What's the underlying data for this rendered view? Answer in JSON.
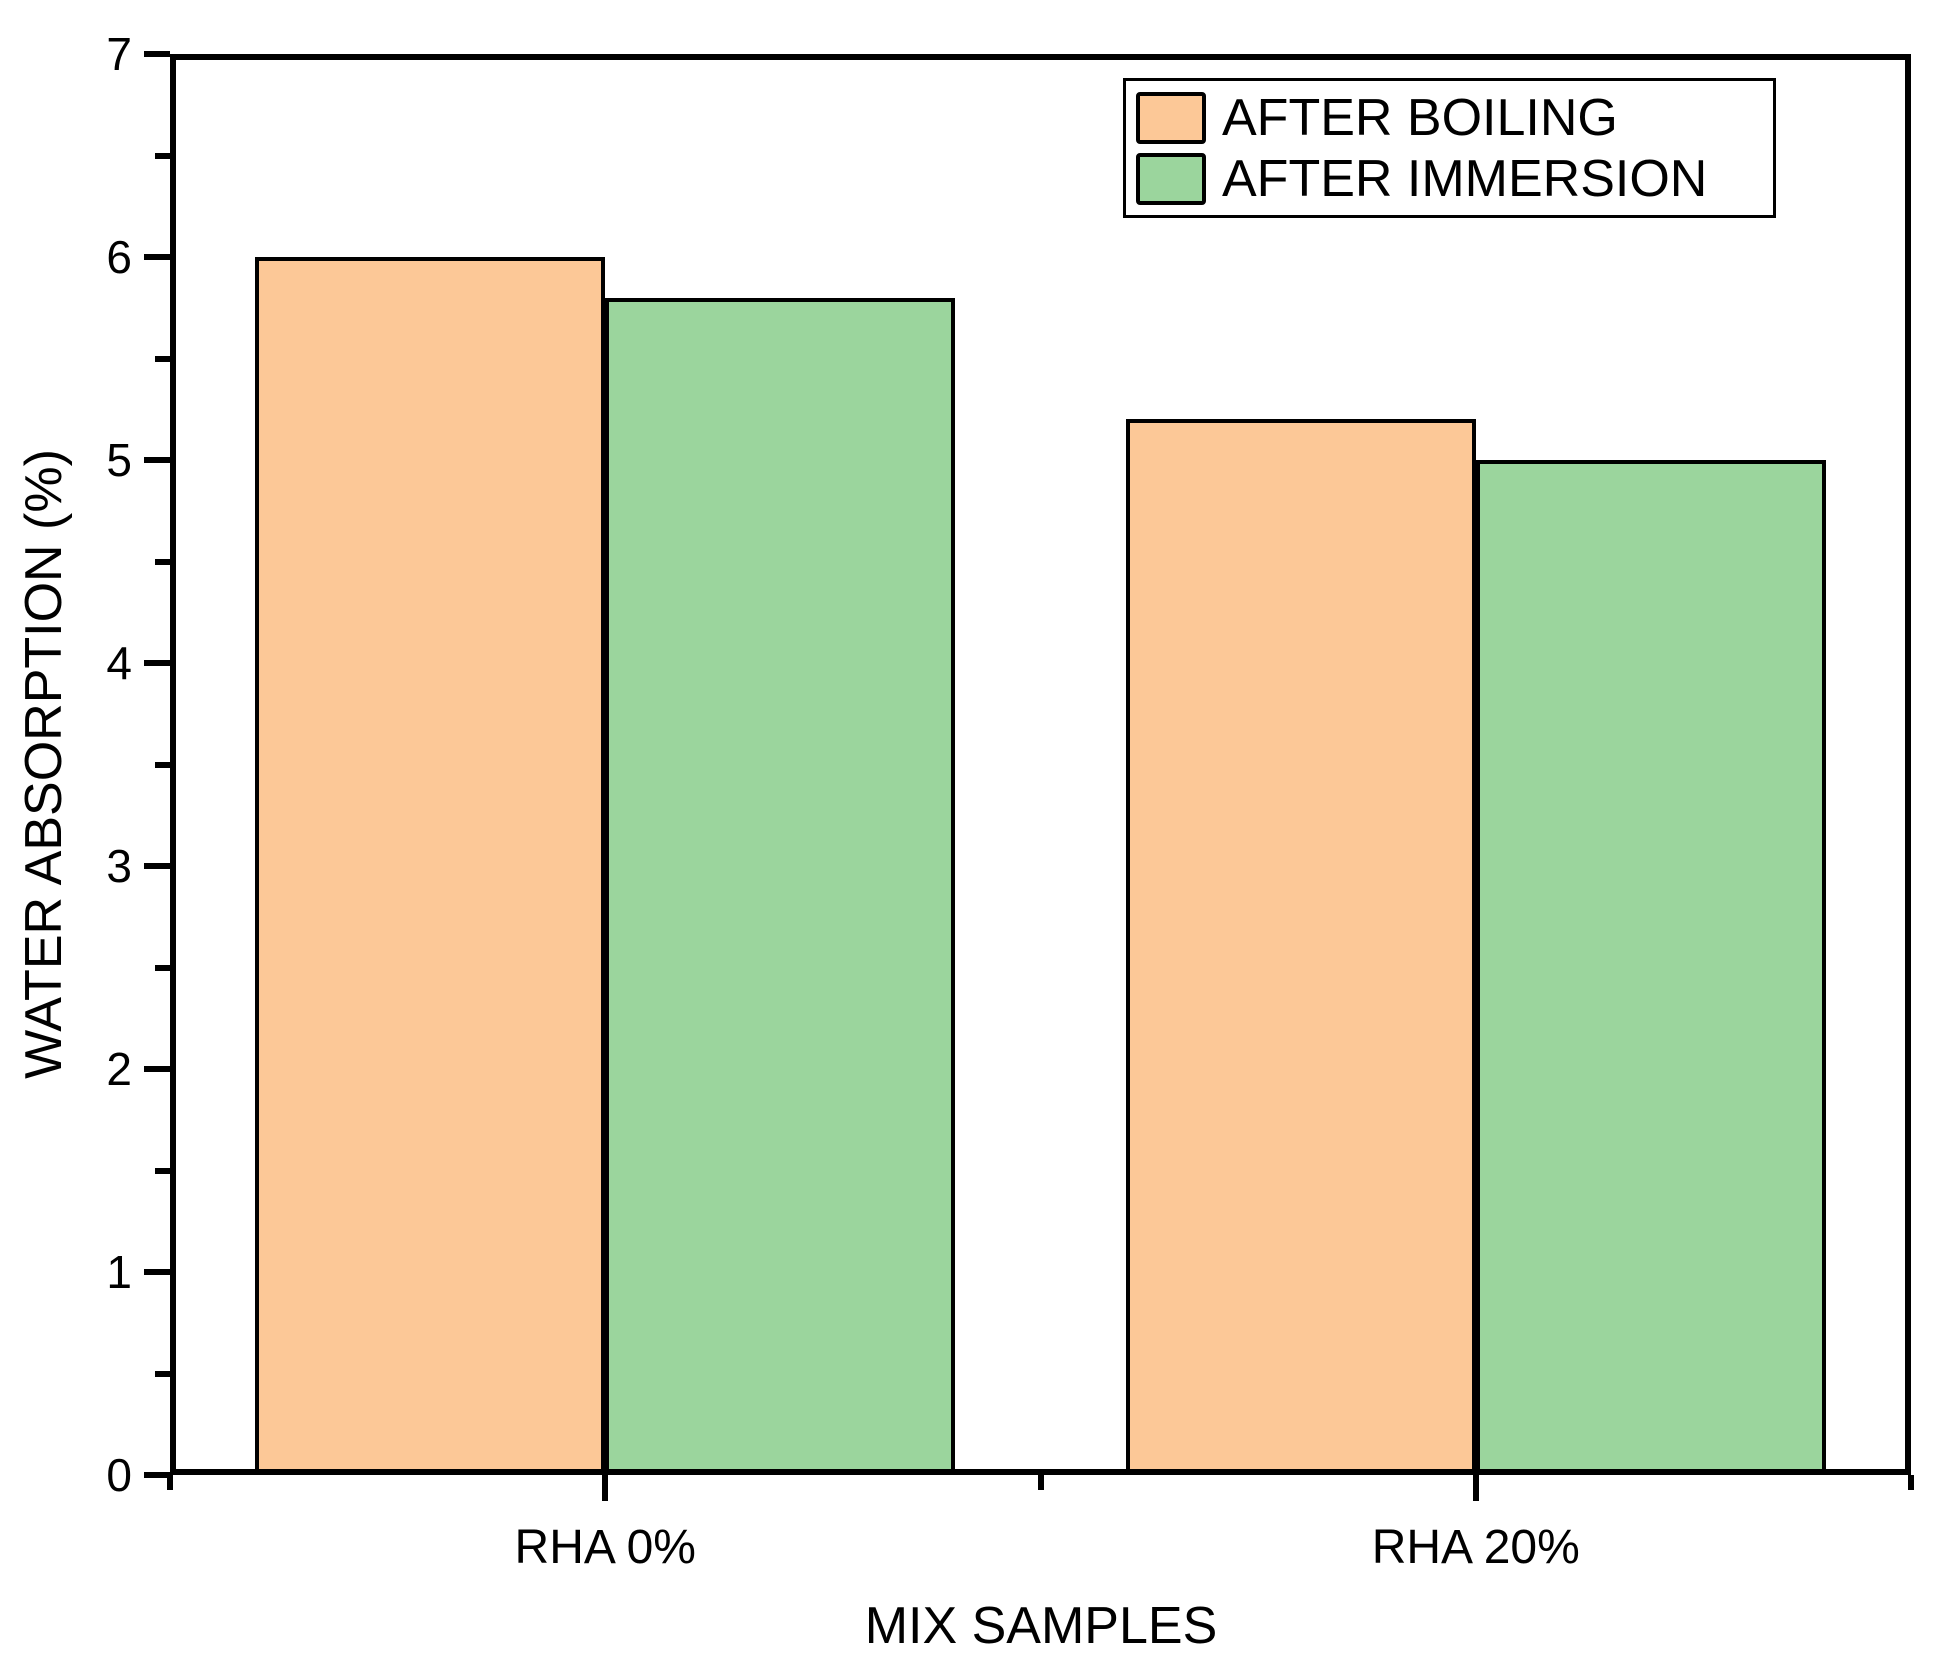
{
  "figure": {
    "background": "#ffffff",
    "axis_color": "#000000"
  },
  "chart_data": {
    "type": "bar",
    "title": "",
    "categories": [
      "RHA 0%",
      "RHA 20%"
    ],
    "series": [
      {
        "name": "AFTER BOILING",
        "color": "#FCC897",
        "values": [
          6.0,
          5.2
        ]
      },
      {
        "name": "AFTER IMMERSION",
        "color": "#9BD59D",
        "values": [
          5.8,
          5.0
        ]
      }
    ],
    "xlabel": "MIX SAMPLES",
    "ylabel": "WATER ABSORPTION (%)",
    "ylim": [
      0,
      7
    ],
    "y_major_step": 1,
    "y_minor_step": 0.5,
    "y_tick_labels": [
      "0",
      "1",
      "2",
      "3",
      "4",
      "5",
      "6",
      "7"
    ],
    "grid": false,
    "legend": {
      "position": "top-right",
      "entries": [
        "AFTER BOILING",
        "AFTER IMMERSION"
      ]
    },
    "bar_edge_color": "#000000"
  }
}
